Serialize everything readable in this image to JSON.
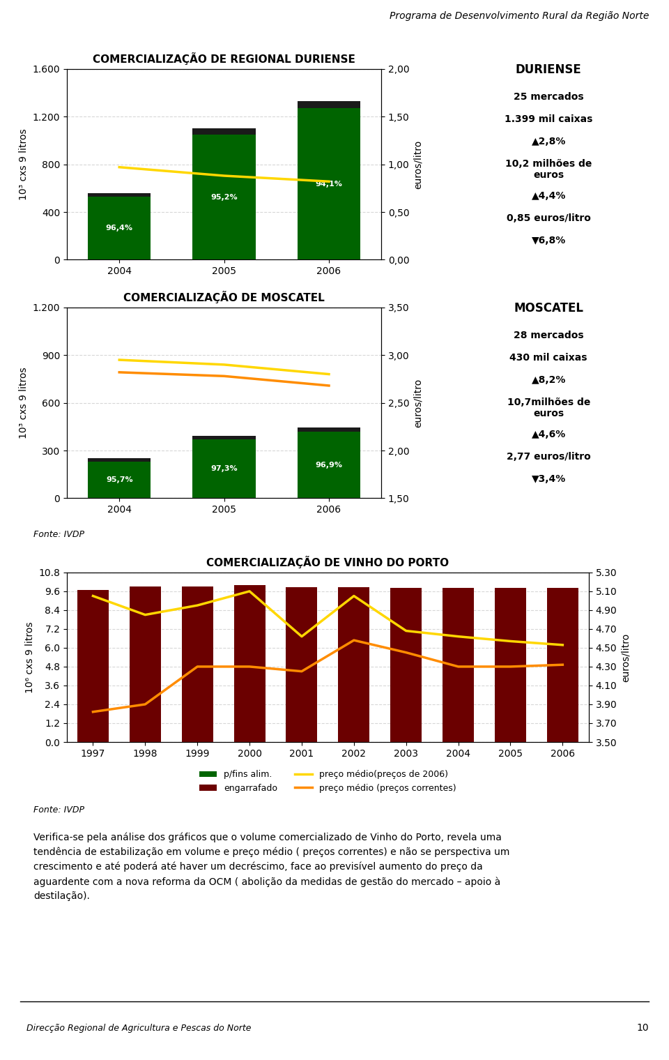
{
  "header": "Programa de Desenvolvimento Rural da Região Norte",
  "chart_data": [
    {
      "type": "bar",
      "title": "COMERCIALIZAÇÃO DE REGIONAL DURIENSE",
      "categories": [
        "2004",
        "2005",
        "2006"
      ],
      "stacked": true,
      "grid": true,
      "ylabel": "10³ cxs 9 litros",
      "y2label": "euros/litro",
      "ylim": [
        0,
        1600
      ],
      "yticks": [
        0,
        400,
        800,
        {
          "value": 1200,
          "label": "1.200"
        },
        {
          "value": 1600,
          "label": "1.600"
        }
      ],
      "y2lim": [
        0.0,
        2.0
      ],
      "y2ticks": [
        {
          "value": 0.0,
          "label": "0,00"
        },
        {
          "value": 0.5,
          "label": "0,50"
        },
        {
          "value": 1.0,
          "label": "1,00"
        },
        {
          "value": 1.5,
          "label": "1,50"
        },
        {
          "value": 2.0,
          "label": "2,00"
        }
      ],
      "series": [
        {
          "color": "#006400",
          "values": [
            530,
            1050,
            1270
          ]
        },
        {
          "color": "#1a1a1a",
          "values": [
            30,
            50,
            60
          ]
        },
        {
          "type": "line",
          "axis": "y2",
          "color": "#FFD700",
          "values": [
            0.97,
            0.88,
            0.82
          ]
        }
      ],
      "annotations": [
        "96,4%",
        "95,2%",
        "94,1%"
      ],
      "panel_title": "DURIENSE",
      "panel_items": [
        "25 mercados",
        "1.399 mil caixas",
        "▲2,8%",
        "10,2 milhões de\neuros",
        "▲4,4%",
        "0,85 euros/litro",
        "▼6,8%"
      ]
    },
    {
      "type": "bar",
      "title": "COMERCIALIZAÇÃO DE MOSCATEL",
      "categories": [
        "2004",
        "2005",
        "2006"
      ],
      "stacked": true,
      "grid": true,
      "ylabel": "10³ cxs 9 litros",
      "y2label": "euros/litro",
      "ylim": [
        0,
        1200
      ],
      "yticks": [
        0,
        300,
        600,
        900,
        {
          "value": 1200,
          "label": "1.200"
        }
      ],
      "y2lim": [
        1.5,
        3.5
      ],
      "y2ticks": [
        {
          "value": 1.5,
          "label": "1,50"
        },
        {
          "value": 2.0,
          "label": "2,00"
        },
        {
          "value": 2.5,
          "label": "2,50"
        },
        {
          "value": 3.0,
          "label": "3,00"
        },
        {
          "value": 3.5,
          "label": "3,50"
        }
      ],
      "series": [
        {
          "color": "#006400",
          "values": [
            230,
            370,
            420
          ]
        },
        {
          "color": "#1a1a1a",
          "values": [
            20,
            20,
            25
          ]
        },
        {
          "type": "line",
          "axis": "y2",
          "color": "#FFD700",
          "values": [
            2.95,
            2.9,
            2.8
          ]
        },
        {
          "type": "line",
          "axis": "y2",
          "color": "#FF8C00",
          "values": [
            2.82,
            2.78,
            2.68
          ]
        }
      ],
      "annotations": [
        "95,7%",
        "97,3%",
        "96,9%"
      ],
      "panel_title": "MOSCATEL",
      "panel_items": [
        "28 mercados",
        "430 mil caixas",
        "▲8,2%",
        "10,7milhões de\neuros",
        "▲4,6%",
        "2,77 euros/litro",
        "▼3,4%"
      ],
      "source": "Fonte: IVDP"
    },
    {
      "type": "bar",
      "title": "COMERCIALIZAÇÃO DE VINHO DO PORTO",
      "categories": [
        "1997",
        "1998",
        "1999",
        "2000",
        "2001",
        "2002",
        "2003",
        "2004",
        "2005",
        "2006"
      ],
      "grid": true,
      "legend": "upper center",
      "ylabel": "10⁶ cxs 9 litros",
      "y2label": "euros/litro",
      "ylim": [
        0.0,
        10.8
      ],
      "yticks": [
        {
          "value": 0.0,
          "label": "0.0"
        },
        1.2,
        2.4,
        3.6,
        4.8,
        {
          "value": 6.0,
          "label": "6.0"
        },
        7.2,
        8.4,
        9.6,
        10.8
      ],
      "y2lim": [
        3.5,
        5.3
      ],
      "y2ticks": [
        {
          "value": 3.5,
          "label": "3.50"
        },
        {
          "value": 3.7,
          "label": "3.70"
        },
        {
          "value": 3.9,
          "label": "3.90"
        },
        {
          "value": 4.1,
          "label": "4.10"
        },
        {
          "value": 4.3,
          "label": "4.30"
        },
        {
          "value": 4.5,
          "label": "4.50"
        },
        {
          "value": 4.7,
          "label": "4.70"
        },
        {
          "value": 4.9,
          "label": "4.90"
        },
        {
          "value": 5.1,
          "label": "5.10"
        },
        {
          "value": 5.3,
          "label": "5.30"
        }
      ],
      "series": [
        {
          "name": "p/fins alim.",
          "type": "bar",
          "color": "#006400",
          "values": [
            null,
            null,
            null,
            null,
            null,
            null,
            null,
            null,
            null,
            null
          ]
        },
        {
          "name": "engarrafado",
          "type": "bar",
          "color": "#6B0000",
          "values": [
            9.7,
            9.9,
            9.9,
            10.0,
            9.85,
            9.85,
            9.8,
            9.8,
            9.8,
            9.8
          ]
        },
        {
          "name": "preço médio(preços de 2006)",
          "type": "line",
          "axis": "y2",
          "color": "#FFD700",
          "values": [
            5.05,
            4.85,
            4.95,
            5.1,
            4.62,
            5.05,
            4.68,
            4.62,
            4.57,
            4.53
          ]
        },
        {
          "name": "preço médio (preços correntes)",
          "type": "line",
          "axis": "y2",
          "color": "#FF8C00",
          "values": [
            3.82,
            3.9,
            4.3,
            4.3,
            4.25,
            4.58,
            4.45,
            4.3,
            4.3,
            4.32
          ]
        }
      ],
      "source": "Fonte: IVDP"
    }
  ],
  "text": "Verifica-se pela análise dos gráficos que o volume comercializado de Vinho do Porto, revela uma\ntendência de estabilização em volume e preço médio ( preços correntes) e não se perspectiva um\ncrescimento e até poderá até haver um decréscimo, face ao previsível aumento do preço da\naguardente com a nova reforma da OCM ( abolição da medidas de gestão do mercado – apoio à\ndestilação).",
  "footer": "Direcção Regional de Agricultura e Pescas do Norte",
  "page": "10"
}
